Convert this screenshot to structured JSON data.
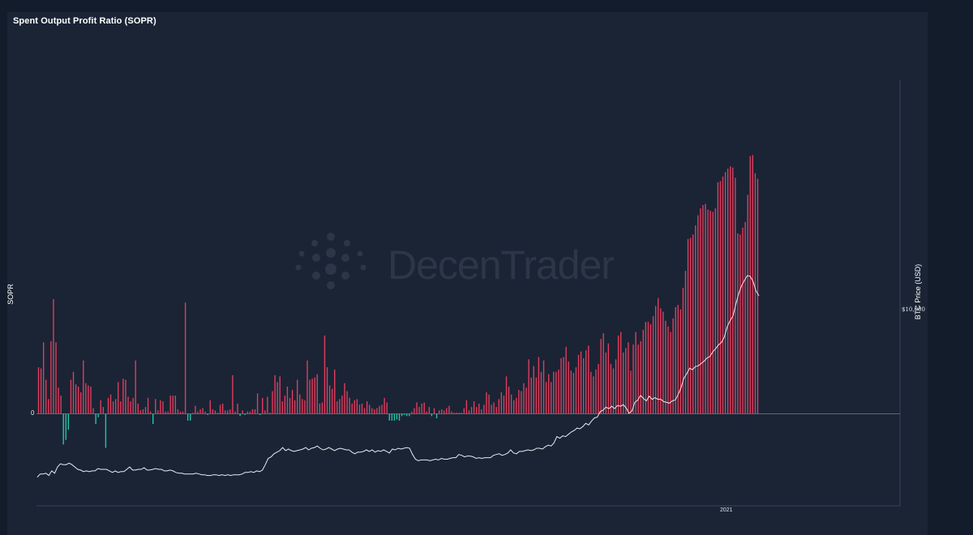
{
  "title": "Spent Output Profit Ratio (SOPR)",
  "watermark": "DecenTrader",
  "chart_data": {
    "type": "bar",
    "title": "Spent Output Profit Ratio (SOPR)",
    "ylabel_left": "SOPR",
    "ylabel_right": "BTC Price (USD)",
    "yticks_left": [
      "0"
    ],
    "yticks_right": [
      "$10,000"
    ],
    "xticks": [
      "2021"
    ],
    "grid": false,
    "colors": {
      "positive": "#e23d5d",
      "negative": "#26c6a6",
      "price_line": "#e8ebf0"
    },
    "bars": [
      0.41,
      0.4,
      0.63,
      0.3,
      0.13,
      0.64,
      1.01,
      0.63,
      0.23,
      0.16,
      -0.27,
      -0.23,
      -0.14,
      0.3,
      0.37,
      0.26,
      0.24,
      0.19,
      0.47,
      0.27,
      0.25,
      0.24,
      0.05,
      -0.09,
      -0.03,
      0.12,
      0.06,
      -0.3,
      0.14,
      0.17,
      0.11,
      0.13,
      0.28,
      0.11,
      0.31,
      0.3,
      0.15,
      0.11,
      0.14,
      0.47,
      0.09,
      0.03,
      0.04,
      0.06,
      0.14,
      0.02,
      -0.09,
      0.13,
      0.03,
      0.12,
      0.11,
      0.02,
      0.02,
      0.16,
      0.16,
      0.16,
      0.04,
      0.02,
      0.02,
      0.98,
      -0.06,
      -0.06,
      0.01,
      0.07,
      0.02,
      0.04,
      0.05,
      0.02,
      -0.01,
      0.12,
      0.04,
      0.03,
      0.01,
      0.08,
      0.09,
      0.03,
      0.03,
      0.04,
      0.34,
      0.02,
      0.09,
      -0.02,
      0.03,
      -0.01,
      0.02,
      0.02,
      0.04,
      0.04,
      0.18,
      -0.01,
      0.14,
      0.03,
      0.15,
      0.01,
      0.2,
      0.34,
      0.28,
      0.33,
      0.11,
      0.16,
      0.24,
      0.14,
      0.21,
      0.12,
      0.3,
      0.17,
      0.13,
      0.12,
      0.47,
      0.3,
      0.31,
      0.32,
      0.35,
      0.09,
      0.1,
      0.69,
      0.41,
      0.25,
      0.22,
      0.39,
      0.11,
      0.13,
      0.16,
      0.27,
      0.2,
      0.14,
      0.09,
      0.12,
      0.13,
      0.08,
      0.09,
      0.05,
      0.11,
      0.08,
      0.05,
      0.04,
      0.05,
      0.07,
      0.08,
      0.14,
      0.1,
      -0.06,
      -0.06,
      -0.06,
      -0.05,
      -0.06,
      -0.02,
      -0.01,
      -0.02,
      -0.02,
      0.02,
      0.05,
      0.1,
      0.06,
      0.09,
      0.1,
      0.02,
      0.06,
      -0.02,
      0.05,
      -0.04,
      0.03,
      0.04,
      0.03,
      0.05,
      0.07,
      0.02,
      0.01,
      0.01,
      0.01,
      0.01,
      0.05,
      0.12,
      0.03,
      0.06,
      0.11,
      0.06,
      0.09,
      0.04,
      0.08,
      0.19,
      0.17,
      0.08,
      0.1,
      0.06,
      0.13,
      0.19,
      0.16,
      0.33,
      0.24,
      0.17,
      0.12,
      0.14,
      0.21,
      0.2,
      0.27,
      0.23,
      0.48,
      0.32,
      0.42,
      0.32,
      0.5,
      0.37,
      0.47,
      0.28,
      0.35,
      0.28,
      0.37,
      0.37,
      0.39,
      0.49,
      0.5,
      0.59,
      0.46,
      0.38,
      0.36,
      0.41,
      0.52,
      0.55,
      0.49,
      0.56,
      0.6,
      0.37,
      0.33,
      0.39,
      0.44,
      0.66,
      0.71,
      0.54,
      0.62,
      0.44,
      0.4,
      0.48,
      0.69,
      0.72,
      0.54,
      0.58,
      0.63,
      0.38,
      0.61,
      0.72,
      0.61,
      0.64,
      0.74,
      0.81,
      0.81,
      0.79,
      0.86,
      0.95,
      1.02,
      0.93,
      0.9,
      0.82,
      0.77,
      0.72,
      0.84,
      0.94,
      0.96,
      0.92,
      1.11,
      1.26,
      1.54,
      1.55,
      1.58,
      1.66,
      1.75,
      1.81,
      1.84,
      1.85,
      1.8,
      1.79,
      1.78,
      1.81,
      2.04,
      2.05,
      2.09,
      2.13,
      2.16,
      2.18,
      2.17,
      2.08,
      1.59,
      1.58,
      1.64,
      1.69,
      1.93,
      2.27,
      2.28,
      2.12,
      2.07
    ],
    "price_line": [
      0.64,
      0.68,
      0.68,
      0.69,
      0.66,
      0.72,
      0.69,
      0.77,
      0.81,
      0.8,
      0.8,
      0.82,
      0.8,
      0.77,
      0.74,
      0.73,
      0.71,
      0.72,
      0.71,
      0.72,
      0.72,
      0.75,
      0.74,
      0.74,
      0.74,
      0.72,
      0.7,
      0.72,
      0.7,
      0.71,
      0.71,
      0.74,
      0.77,
      0.73,
      0.73,
      0.74,
      0.74,
      0.76,
      0.73,
      0.73,
      0.74,
      0.75,
      0.74,
      0.74,
      0.72,
      0.72,
      0.73,
      0.72,
      0.7,
      0.69,
      0.69,
      0.68,
      0.68,
      0.68,
      0.68,
      0.69,
      0.68,
      0.67,
      0.67,
      0.66,
      0.66,
      0.67,
      0.67,
      0.66,
      0.67,
      0.66,
      0.67,
      0.66,
      0.67,
      0.67,
      0.67,
      0.68,
      0.7,
      0.7,
      0.71,
      0.7,
      0.72,
      0.71,
      0.73,
      0.8,
      0.88,
      0.9,
      0.94,
      0.96,
      0.98,
      1.02,
      0.98,
      1.0,
      0.98,
      0.97,
      0.98,
      0.99,
      1.0,
      1.02,
      0.99,
      1.01,
      1.02,
      1.04,
      1.01,
      0.99,
      1.0,
      1.02,
      1.0,
      0.98,
      1.0,
      1.01,
      1.0,
      0.99,
      0.99,
      0.96,
      0.94,
      0.96,
      0.96,
      0.97,
      0.99,
      0.97,
      0.99,
      0.96,
      0.98,
      0.97,
      0.99,
      0.97,
      0.95,
      1.0,
      0.99,
      1.01,
      1.0,
      1.01,
      1.02,
      1.01,
      0.93,
      0.87,
      0.85,
      0.86,
      0.86,
      0.86,
      0.85,
      0.86,
      0.87,
      0.86,
      0.88,
      0.87,
      0.87,
      0.88,
      0.89,
      0.89,
      0.93,
      0.92,
      0.9,
      0.91,
      0.91,
      0.9,
      0.88,
      0.89,
      0.88,
      0.89,
      0.89,
      0.89,
      0.92,
      0.93,
      0.94,
      0.92,
      0.93,
      0.95,
      0.99,
      0.95,
      0.94,
      0.97,
      0.97,
      0.98,
      0.99,
      0.98,
      0.99,
      1.01,
      1.01,
      1.0,
      1.03,
      1.05,
      1.04,
      1.08,
      1.16,
      1.14,
      1.17,
      1.16,
      1.19,
      1.22,
      1.24,
      1.27,
      1.26,
      1.29,
      1.33,
      1.31,
      1.36,
      1.4,
      1.41,
      1.48,
      1.5,
      1.54,
      1.52,
      1.55,
      1.52,
      1.56,
      1.55,
      1.57,
      1.53,
      1.46,
      1.49,
      1.6,
      1.63,
      1.69,
      1.65,
      1.62,
      1.68,
      1.64,
      1.66,
      1.64,
      1.64,
      1.61,
      1.6,
      1.59,
      1.62,
      1.63,
      1.7,
      1.79,
      1.91,
      1.97,
      2.04,
      2.02,
      2.06,
      2.07,
      2.1,
      2.13,
      2.17,
      2.19,
      2.25,
      2.29,
      2.34,
      2.37,
      2.44,
      2.57,
      2.65,
      2.71,
      2.86,
      3.0,
      3.1,
      3.17,
      3.23,
      3.22,
      3.15,
      3.03,
      2.97
    ]
  }
}
